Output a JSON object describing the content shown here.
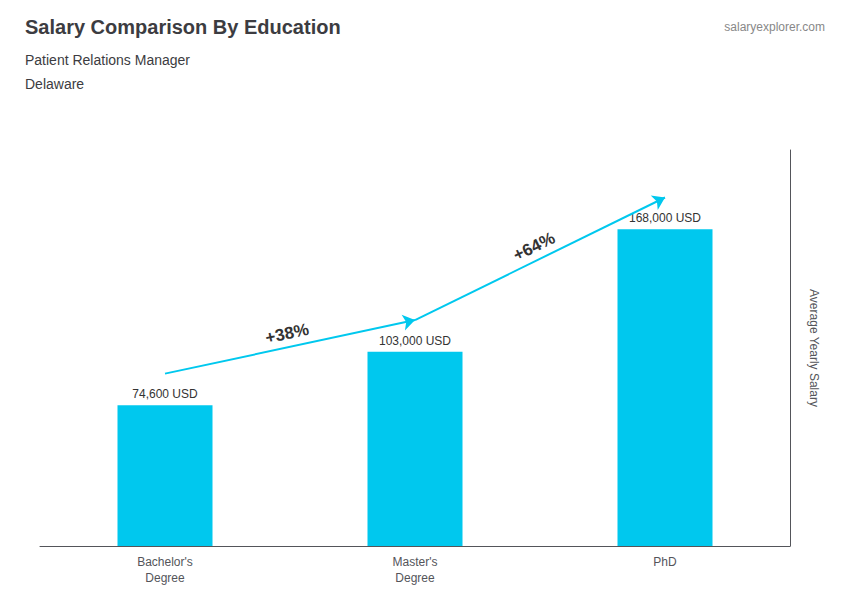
{
  "chart_data": {
    "type": "bar",
    "title": "Salary Comparison By Education",
    "subtitle": "Patient Relations Manager",
    "location": "Delaware",
    "watermark": "salaryexplorer.com",
    "ylabel": "Average Yearly Salary",
    "categories": [
      "Bachelor's\nDegree",
      "Master's\nDegree",
      "PhD"
    ],
    "values": [
      74600,
      103000,
      168000
    ],
    "value_labels": [
      "74,600 USD",
      "103,000 USD",
      "168,000 USD"
    ],
    "data_labels": true,
    "color": "#00c8ee",
    "ylim": [
      0,
      210000
    ],
    "yticks": [],
    "tick_labels": "x",
    "grid": false,
    "annotations": [
      {
        "text": "+38%",
        "from": "Bachelor's\nDegree",
        "to": "Master's\nDegree"
      },
      {
        "text": "+64%",
        "from": "Master's\nDegree",
        "to": "PhD"
      }
    ]
  }
}
